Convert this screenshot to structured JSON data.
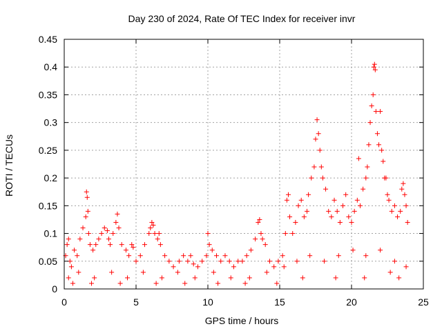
{
  "chart_data": {
    "type": "scatter",
    "title": "Day 230 of 2024, Rate Of TEC Index for receiver invr",
    "xlabel": "GPS time / hours",
    "ylabel": "ROTI / TECUs",
    "xlim": [
      0,
      25
    ],
    "ylim": [
      0,
      0.45
    ],
    "grid": true,
    "marker": "+",
    "color": "#ff0000",
    "x_ticks": [
      "0",
      "5",
      "10",
      "15",
      "20",
      "25"
    ],
    "y_ticks": [
      "0",
      "0.05",
      "0.1",
      "0.15",
      "0.2",
      "0.25",
      "0.3",
      "0.35",
      "0.4",
      "0.45"
    ],
    "series": [
      {
        "name": "ROTI",
        "x": [
          0.1,
          0.2,
          0.3,
          0.4,
          0.5,
          0.7,
          0.9,
          1.1,
          1.3,
          1.5,
          1.55,
          1.6,
          1.65,
          1.7,
          1.8,
          2.0,
          2.2,
          2.4,
          2.6,
          2.8,
          3.0,
          3.1,
          3.2,
          3.4,
          3.6,
          3.7,
          3.8,
          4.0,
          4.3,
          4.5,
          4.7,
          4.8,
          5.0,
          5.3,
          5.6,
          5.9,
          6.0,
          6.1,
          6.2,
          6.3,
          6.5,
          6.6,
          6.7,
          7.0,
          7.3,
          7.6,
          8.0,
          8.3,
          8.6,
          8.8,
          9.0,
          9.3,
          9.6,
          9.9,
          10.0,
          10.1,
          10.3,
          10.6,
          10.9,
          11.2,
          11.5,
          11.8,
          12.1,
          12.4,
          12.7,
          13.0,
          13.3,
          13.5,
          13.6,
          13.7,
          13.8,
          14.0,
          14.3,
          14.6,
          14.9,
          15.2,
          15.4,
          15.5,
          15.6,
          15.7,
          15.9,
          16.1,
          16.3,
          16.5,
          16.7,
          16.9,
          17.0,
          17.2,
          17.4,
          17.5,
          17.6,
          17.7,
          17.8,
          17.9,
          18.0,
          18.2,
          18.4,
          18.6,
          18.8,
          19.0,
          19.2,
          19.4,
          19.6,
          19.8,
          20.0,
          20.2,
          20.4,
          20.5,
          20.6,
          20.8,
          21.0,
          21.1,
          21.2,
          21.3,
          21.4,
          21.5,
          21.55,
          21.6,
          21.65,
          21.7,
          21.8,
          21.9,
          22.0,
          22.1,
          22.2,
          22.3,
          22.4,
          22.5,
          22.6,
          22.8,
          23.0,
          23.2,
          23.4,
          23.5,
          23.6,
          23.7,
          23.8,
          23.9,
          0.3,
          1.0,
          2.1,
          3.3,
          4.4,
          5.5,
          6.8,
          7.9,
          9.1,
          10.4,
          11.6,
          12.9,
          14.1,
          15.3,
          16.2,
          17.1,
          18.1,
          19.1,
          20.1,
          21.0,
          22.0,
          23.0,
          23.8,
          0.6,
          1.9,
          3.9,
          6.4,
          8.4,
          10.7,
          12.6,
          14.8,
          16.6,
          18.9,
          20.9,
          22.7,
          23.3
        ],
        "y": [
          0.06,
          0.08,
          0.09,
          0.05,
          0.04,
          0.07,
          0.06,
          0.09,
          0.11,
          0.13,
          0.175,
          0.165,
          0.14,
          0.1,
          0.08,
          0.07,
          0.08,
          0.09,
          0.1,
          0.11,
          0.105,
          0.09,
          0.08,
          0.1,
          0.12,
          0.135,
          0.11,
          0.08,
          0.07,
          0.06,
          0.08,
          0.075,
          0.05,
          0.06,
          0.08,
          0.1,
          0.11,
          0.12,
          0.115,
          0.1,
          0.09,
          0.1,
          0.08,
          0.06,
          0.05,
          0.04,
          0.05,
          0.06,
          0.05,
          0.06,
          0.045,
          0.04,
          0.05,
          0.06,
          0.1,
          0.08,
          0.07,
          0.06,
          0.05,
          0.06,
          0.05,
          0.04,
          0.05,
          0.05,
          0.06,
          0.07,
          0.09,
          0.12,
          0.125,
          0.1,
          0.09,
          0.08,
          0.05,
          0.04,
          0.05,
          0.06,
          0.1,
          0.16,
          0.17,
          0.13,
          0.1,
          0.12,
          0.15,
          0.16,
          0.13,
          0.14,
          0.17,
          0.2,
          0.22,
          0.27,
          0.305,
          0.28,
          0.25,
          0.22,
          0.2,
          0.18,
          0.14,
          0.13,
          0.16,
          0.14,
          0.12,
          0.15,
          0.17,
          0.13,
          0.12,
          0.14,
          0.16,
          0.235,
          0.15,
          0.18,
          0.2,
          0.22,
          0.26,
          0.3,
          0.33,
          0.35,
          0.4,
          0.405,
          0.395,
          0.32,
          0.28,
          0.26,
          0.32,
          0.25,
          0.23,
          0.2,
          0.2,
          0.17,
          0.16,
          0.14,
          0.15,
          0.13,
          0.14,
          0.18,
          0.19,
          0.17,
          0.15,
          0.12,
          0.02,
          0.03,
          0.02,
          0.03,
          0.02,
          0.03,
          0.02,
          0.03,
          0.02,
          0.03,
          0.02,
          0.02,
          0.03,
          0.04,
          0.05,
          0.06,
          0.05,
          0.06,
          0.07,
          0.06,
          0.07,
          0.05,
          0.04,
          0.01,
          0.01,
          0.01,
          0.01,
          0.01,
          0.01,
          0.01,
          0.01,
          0.02,
          0.02,
          0.02,
          0.03,
          0.02
        ]
      }
    ]
  }
}
